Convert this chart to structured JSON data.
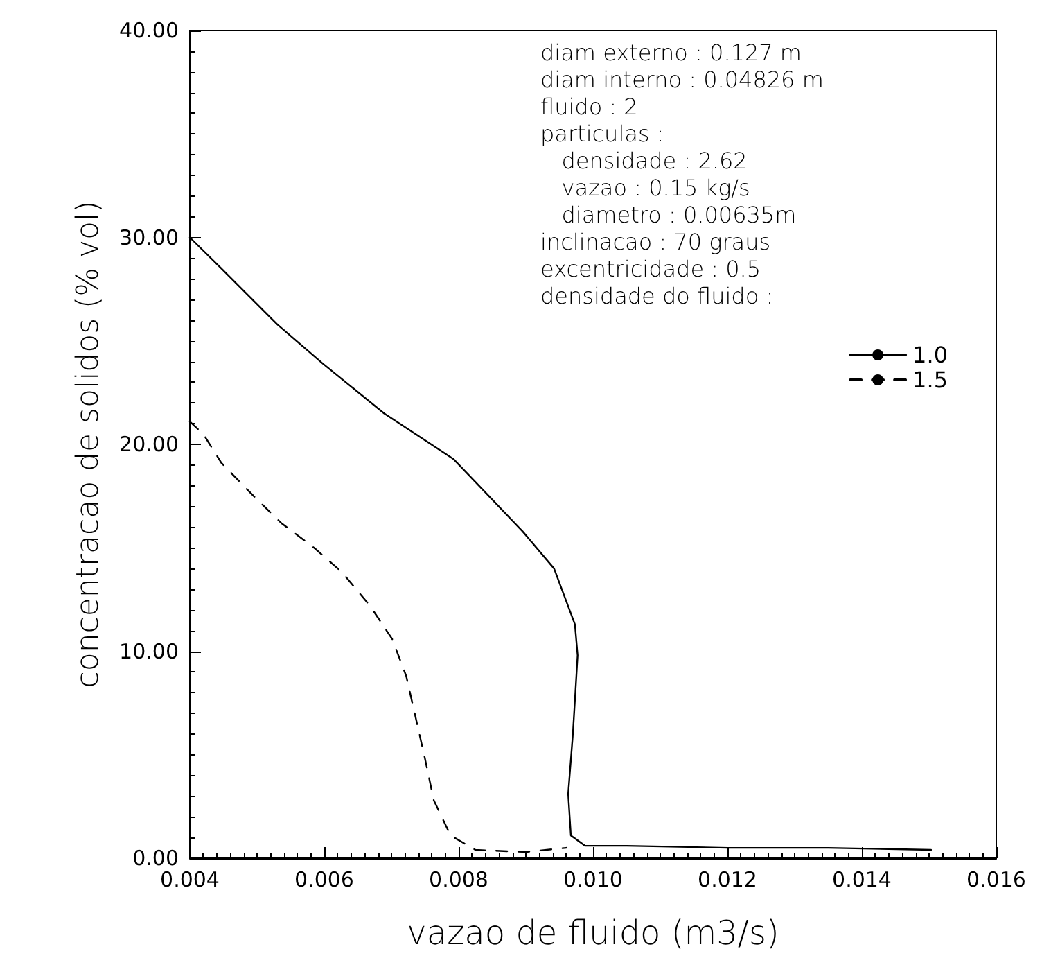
{
  "chart_data": {
    "type": "line",
    "xlabel": "vazao de fluido (m3/s)",
    "ylabel": "concentracao de solidos (% vol)",
    "annotations": [
      "diam externo : 0.127 m",
      "diam interno : 0.04826 m",
      "fluido : 2",
      "particulas :",
      "   densidade : 2.62",
      "   vazao : 0.15 kg/s",
      "   diametro : 0.00635m",
      "inclinacao : 70 graus",
      "excentricidade : 0.5"
    ],
    "legend_title": "densidade do fluido :",
    "xlim": [
      0.004,
      0.016
    ],
    "xticks": [
      0.004,
      0.006,
      0.008,
      {
        "value": 0.01,
        "label": "0.010"
      },
      0.012,
      0.014,
      0.016
    ],
    "ylim": [
      0,
      40
    ],
    "yticks": [
      {
        "value": 0,
        "label": "0.00"
      },
      {
        "value": 10,
        "label": "10.00"
      },
      {
        "value": 20,
        "label": "20.00"
      },
      {
        "value": 30,
        "label": "30.00"
      },
      {
        "value": 40,
        "label": "40.00"
      }
    ],
    "grid": false,
    "legend": "top right",
    "marker": "none",
    "series": [
      {
        "name": "1.0",
        "color": "#000000",
        "line_style": "solid",
        "x": [
          0.004,
          0.00447,
          0.0053,
          0.00598,
          0.00689,
          0.00792,
          0.00845,
          0.00895,
          0.00942,
          0.00973,
          0.00977,
          0.0097,
          0.00963,
          0.00967,
          0.00988,
          0.0105,
          0.012,
          0.0135,
          0.01503
        ],
        "values": [
          30,
          28.5,
          25.8,
          23.9,
          21.5,
          19.3,
          17.5,
          15.8,
          14,
          11.3,
          9.8,
          6,
          3.1,
          1.1,
          0.6,
          0.6,
          0.5,
          0.5,
          0.4
        ]
      },
      {
        "name": "1.5",
        "color": "#000000",
        "line_style": "dashed",
        "x": [
          0.004,
          0.0042,
          0.00447,
          0.00495,
          0.00536,
          0.00585,
          0.00627,
          0.00668,
          0.00701,
          0.00722,
          0.00736,
          0.0075,
          0.00763,
          0.00788,
          0.00825,
          0.009,
          0.0096
        ],
        "values": [
          21.1,
          20.5,
          19.1,
          17.5,
          16.2,
          15,
          13.8,
          12.2,
          10.6,
          8.8,
          6.8,
          4.8,
          2.8,
          1.1,
          0.4,
          0.3,
          0.5
        ]
      }
    ]
  }
}
